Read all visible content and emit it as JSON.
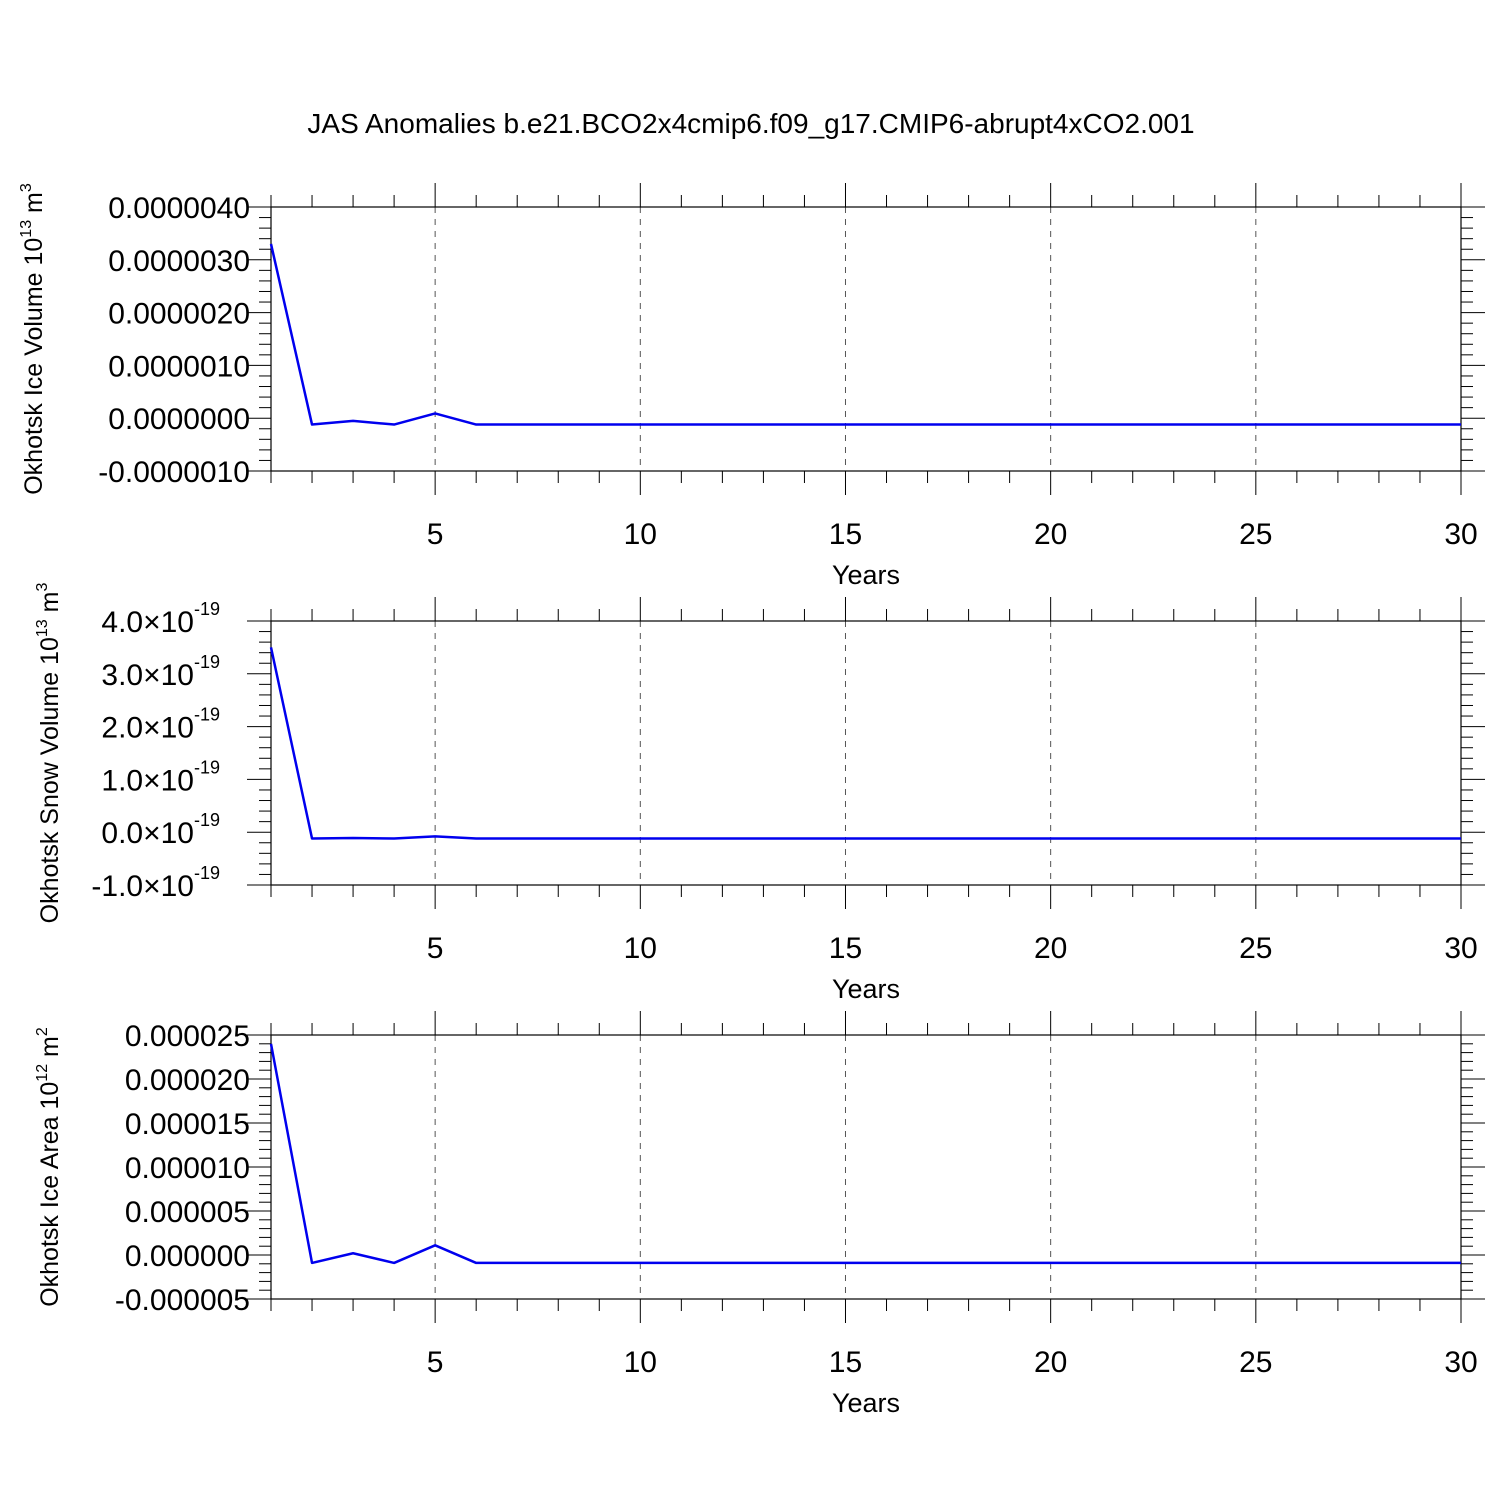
{
  "figure": {
    "title": "JAS Anomalies b.e21.BCO2x4cmip6.f09_g17.CMIP6-abrupt4xCO2.001",
    "line_color": "#0000ee"
  },
  "chart_data": [
    {
      "type": "line",
      "ylabel": "Okhotsk Ice Volume 10",
      "ylabel_exp": "13",
      "ylabel_unit": " m",
      "ylabel_unit_exp": "3",
      "xlabel": "Years",
      "xlim": [
        1,
        30
      ],
      "ylim": [
        -1e-06,
        4e-06
      ],
      "x_ticks": [
        5,
        10,
        15,
        20,
        25,
        30
      ],
      "x_tick_labels": [
        "5",
        "10",
        "15",
        "20",
        "25",
        "30"
      ],
      "y_ticks": [
        -1e-06,
        0,
        1e-06,
        2e-06,
        3e-06,
        4e-06
      ],
      "y_tick_labels": [
        "-0.0000010",
        "0.0000000",
        "0.0000010",
        "0.0000020",
        "0.0000030",
        "0.0000040"
      ],
      "y_minor_per_major": 5,
      "grid": "x-dashed",
      "series": [
        {
          "x": [
            1,
            2,
            3,
            4,
            5,
            6,
            7,
            8,
            9,
            10,
            11,
            12,
            13,
            14,
            15,
            16,
            17,
            18,
            19,
            20,
            21,
            22,
            23,
            24,
            25,
            26,
            27,
            28,
            29,
            30
          ],
          "values": [
            3.3e-06,
            -1.2e-07,
            -5e-08,
            -1.2e-07,
            9e-08,
            -1.2e-07,
            -1.2e-07,
            -1.2e-07,
            -1.2e-07,
            -1.2e-07,
            -1.2e-07,
            -1.2e-07,
            -1.2e-07,
            -1.2e-07,
            -1.2e-07,
            -1.2e-07,
            -1.2e-07,
            -1.2e-07,
            -1.2e-07,
            -1.2e-07,
            -1.2e-07,
            -1.2e-07,
            -1.2e-07,
            -1.2e-07,
            -1.2e-07,
            -1.2e-07,
            -1.2e-07,
            -1.2e-07,
            -1.2e-07,
            -1.2e-07
          ]
        }
      ]
    },
    {
      "type": "line",
      "ylabel": "Okhotsk Snow Volume 10",
      "ylabel_exp": "13",
      "ylabel_unit": " m",
      "ylabel_unit_exp": "3",
      "xlabel": "Years",
      "xlim": [
        1,
        30
      ],
      "ylim": [
        -1e-19,
        4e-19
      ],
      "x_ticks": [
        5,
        10,
        15,
        20,
        25,
        30
      ],
      "x_tick_labels": [
        "5",
        "10",
        "15",
        "20",
        "25",
        "30"
      ],
      "y_ticks": [
        -1e-19,
        0,
        1e-19,
        2e-19,
        3e-19,
        4e-19
      ],
      "y_tick_labels": [
        "-1.0×10",
        "0.0×10",
        "1.0×10",
        "2.0×10",
        "3.0×10",
        "4.0×10"
      ],
      "y_tick_exponent": "-19",
      "y_minor_per_major": 5,
      "grid": "x-dashed",
      "series": [
        {
          "x": [
            1,
            2,
            3,
            4,
            5,
            6,
            7,
            8,
            9,
            10,
            11,
            12,
            13,
            14,
            15,
            16,
            17,
            18,
            19,
            20,
            21,
            22,
            23,
            24,
            25,
            26,
            27,
            28,
            29,
            30
          ],
          "values": [
            3.5e-19,
            -1.2e-20,
            -1.1e-20,
            -1.2e-20,
            -8e-21,
            -1.2e-20,
            -1.2e-20,
            -1.2e-20,
            -1.2e-20,
            -1.2e-20,
            -1.2e-20,
            -1.2e-20,
            -1.2e-20,
            -1.2e-20,
            -1.2e-20,
            -1.2e-20,
            -1.2e-20,
            -1.2e-20,
            -1.2e-20,
            -1.2e-20,
            -1.2e-20,
            -1.2e-20,
            -1.2e-20,
            -1.2e-20,
            -1.2e-20,
            -1.2e-20,
            -1.2e-20,
            -1.2e-20,
            -1.2e-20,
            -1.2e-20
          ]
        }
      ]
    },
    {
      "type": "line",
      "ylabel": "Okhotsk Ice Area 10",
      "ylabel_exp": "12",
      "ylabel_unit": " m",
      "ylabel_unit_exp": "2",
      "xlabel": "Years",
      "xlim": [
        1,
        30
      ],
      "ylim": [
        -5e-06,
        2.5e-05
      ],
      "x_ticks": [
        5,
        10,
        15,
        20,
        25,
        30
      ],
      "x_tick_labels": [
        "5",
        "10",
        "15",
        "20",
        "25",
        "30"
      ],
      "y_ticks": [
        -5e-06,
        0,
        5e-06,
        1e-05,
        1.5e-05,
        2e-05,
        2.5e-05
      ],
      "y_tick_labels": [
        "-0.000005",
        "0.000000",
        "0.000005",
        "0.000010",
        "0.000015",
        "0.000020",
        "0.000025"
      ],
      "y_minor_per_major": 5,
      "grid": "x-dashed",
      "series": [
        {
          "x": [
            1,
            2,
            3,
            4,
            5,
            6,
            7,
            8,
            9,
            10,
            11,
            12,
            13,
            14,
            15,
            16,
            17,
            18,
            19,
            20,
            21,
            22,
            23,
            24,
            25,
            26,
            27,
            28,
            29,
            30
          ],
          "values": [
            2.4e-05,
            -9e-07,
            2e-07,
            -9e-07,
            1.1e-06,
            -9e-07,
            -9e-07,
            -9e-07,
            -9e-07,
            -9e-07,
            -9e-07,
            -9e-07,
            -9e-07,
            -9e-07,
            -9e-07,
            -9e-07,
            -9e-07,
            -9e-07,
            -9e-07,
            -9e-07,
            -9e-07,
            -9e-07,
            -9e-07,
            -9e-07,
            -9e-07,
            -9e-07,
            -9e-07,
            -9e-07,
            -9e-07,
            -9e-07
          ]
        }
      ]
    }
  ]
}
